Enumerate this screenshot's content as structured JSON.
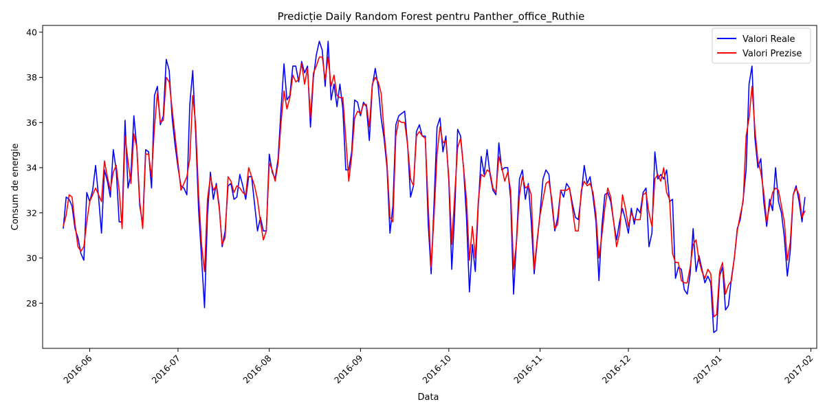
{
  "chart_data": {
    "type": "line",
    "title": "Predicție Daily Random Forest pentru Panther_office_Ruthie",
    "xlabel": "Data",
    "ylabel": "Consum de energie",
    "x_start": "2016-05-23",
    "x_step_days": 1,
    "xlim": [
      "2016-05-16",
      "2017-02-03"
    ],
    "ylim": [
      26.0,
      40.3
    ],
    "x_ticks": [
      {
        "date": "2016-06-01",
        "label": "2016-06"
      },
      {
        "date": "2016-07-01",
        "label": "2016-07"
      },
      {
        "date": "2016-08-01",
        "label": "2016-08"
      },
      {
        "date": "2016-09-01",
        "label": "2016-09"
      },
      {
        "date": "2016-10-01",
        "label": "2016-10"
      },
      {
        "date": "2016-11-01",
        "label": "2016-11"
      },
      {
        "date": "2016-12-01",
        "label": "2016-12"
      },
      {
        "date": "2017-01-01",
        "label": "2017-01"
      },
      {
        "date": "2017-02-01",
        "label": "2017-02"
      }
    ],
    "y_ticks": [
      {
        "value": 28,
        "label": "28"
      },
      {
        "value": 30,
        "label": "30"
      },
      {
        "value": 32,
        "label": "32"
      },
      {
        "value": 34,
        "label": "34"
      },
      {
        "value": 36,
        "label": "36"
      },
      {
        "value": 38,
        "label": "38"
      },
      {
        "value": 40,
        "label": "40"
      }
    ],
    "grid": false,
    "legend_position": "top-right",
    "series": [
      {
        "name": "Valori Reale",
        "color": "#0000ff",
        "values": [
          31.3,
          32.7,
          32.6,
          32.3,
          31.3,
          30.9,
          30.2,
          29.9,
          32.9,
          32.5,
          33.0,
          34.1,
          32.7,
          31.1,
          33.9,
          33.4,
          32.7,
          34.8,
          33.9,
          31.6,
          31.6,
          36.1,
          33.1,
          33.7,
          36.3,
          34.9,
          32.3,
          31.5,
          34.8,
          34.7,
          33.1,
          37.2,
          37.6,
          35.9,
          36.3,
          38.8,
          38.3,
          36.2,
          35.0,
          34.0,
          33.2,
          33.1,
          32.8,
          36.8,
          38.3,
          35.5,
          32.1,
          30.0,
          27.8,
          31.9,
          33.8,
          32.6,
          33.3,
          32.3,
          30.5,
          31.2,
          33.2,
          33.3,
          32.6,
          32.7,
          33.7,
          33.2,
          32.6,
          33.6,
          33.6,
          32.4,
          31.2,
          31.8,
          31.2,
          31.2,
          34.6,
          33.8,
          33.5,
          34.4,
          36.6,
          38.6,
          37.0,
          37.2,
          38.5,
          38.5,
          37.8,
          38.7,
          38.2,
          38.5,
          35.8,
          38.0,
          39.0,
          39.6,
          39.2,
          37.6,
          39.6,
          37.0,
          37.7,
          36.7,
          37.7,
          36.6,
          33.9,
          33.9,
          34.7,
          37.0,
          36.9,
          36.3,
          36.9,
          36.7,
          35.2,
          37.6,
          38.4,
          37.6,
          36.2,
          35.3,
          34.0,
          31.1,
          32.3,
          35.9,
          36.3,
          36.4,
          36.5,
          35.0,
          32.7,
          33.2,
          35.6,
          35.9,
          35.4,
          35.4,
          31.5,
          29.3,
          32.5,
          35.8,
          36.2,
          34.7,
          35.4,
          33.4,
          29.5,
          32.0,
          35.7,
          35.4,
          34.0,
          31.8,
          28.5,
          30.6,
          29.4,
          32.3,
          34.5,
          33.7,
          34.8,
          33.7,
          33.0,
          32.8,
          35.1,
          33.9,
          34.0,
          34.0,
          32.6,
          28.4,
          30.8,
          33.5,
          33.9,
          32.6,
          33.3,
          31.6,
          29.3,
          30.7,
          32.0,
          33.5,
          33.9,
          33.7,
          32.4,
          31.2,
          31.8,
          33.0,
          32.7,
          33.3,
          33.1,
          32.4,
          31.8,
          31.7,
          32.8,
          34.1,
          33.3,
          33.6,
          32.7,
          31.6,
          29.0,
          31.4,
          32.8,
          32.9,
          32.5,
          31.6,
          30.8,
          31.6,
          32.2,
          31.7,
          31.1,
          32.2,
          31.5,
          32.2,
          32.0,
          32.9,
          33.1,
          30.5,
          31.1,
          34.7,
          33.5,
          33.7,
          33.5,
          33.9,
          32.5,
          32.6,
          29.1,
          29.6,
          29.5,
          28.6,
          28.4,
          29.3,
          31.3,
          29.4,
          30.1,
          29.5,
          28.9,
          29.2,
          28.9,
          26.7,
          26.8,
          29.2,
          29.6,
          27.7,
          27.9,
          29.1,
          30.0,
          31.3,
          31.7,
          32.6,
          33.9,
          37.7,
          38.5,
          35.3,
          34.0,
          34.4,
          32.5,
          31.4,
          32.6,
          32.1,
          34.0,
          32.5,
          32.0,
          30.9,
          29.2,
          30.3,
          32.8,
          33.2,
          32.5,
          31.6,
          32.7
        ]
      },
      {
        "name": "Valori Prezise",
        "color": "#ff0000",
        "values": [
          31.4,
          31.9,
          32.8,
          32.7,
          31.5,
          30.5,
          30.3,
          30.5,
          31.6,
          32.5,
          32.8,
          33.1,
          32.8,
          32.5,
          34.3,
          33.6,
          33.0,
          33.8,
          34.1,
          33.0,
          31.3,
          35.4,
          34.3,
          33.3,
          35.5,
          34.9,
          32.5,
          31.3,
          34.6,
          34.6,
          33.6,
          35.8,
          37.3,
          36.0,
          36.1,
          38.0,
          37.8,
          36.6,
          35.4,
          34.2,
          33.0,
          33.3,
          33.6,
          34.4,
          37.2,
          35.9,
          32.8,
          30.6,
          29.4,
          32.6,
          33.6,
          33.0,
          33.2,
          32.2,
          30.6,
          30.9,
          33.6,
          33.4,
          32.9,
          33.2,
          33.1,
          32.9,
          32.8,
          34.0,
          33.6,
          33.2,
          32.6,
          31.6,
          30.8,
          31.2,
          34.2,
          33.9,
          33.4,
          34.2,
          36.0,
          37.4,
          36.6,
          37.1,
          38.1,
          37.8,
          37.9,
          38.6,
          37.7,
          38.4,
          36.2,
          38.2,
          38.5,
          38.9,
          38.9,
          37.9,
          38.9,
          37.6,
          38.1,
          37.2,
          37.1,
          37.1,
          35.3,
          33.4,
          34.5,
          36.2,
          36.5,
          36.4,
          36.8,
          36.8,
          35.8,
          37.7,
          38.0,
          37.8,
          37.3,
          35.6,
          34.2,
          31.8,
          31.6,
          35.4,
          36.1,
          36.0,
          36.0,
          35.0,
          33.5,
          33.2,
          35.4,
          35.6,
          35.4,
          35.3,
          32.3,
          29.6,
          31.9,
          34.6,
          35.8,
          35.1,
          35.2,
          33.6,
          30.6,
          32.8,
          34.9,
          35.3,
          34.0,
          32.6,
          29.9,
          31.4,
          30.0,
          32.5,
          33.7,
          33.6,
          33.9,
          33.8,
          33.1,
          32.9,
          34.5,
          34.0,
          33.4,
          33.8,
          33.0,
          29.5,
          30.7,
          32.8,
          33.6,
          33.1,
          33.2,
          32.8,
          29.5,
          30.8,
          31.9,
          32.6,
          33.3,
          33.4,
          32.6,
          31.3,
          31.5,
          33.0,
          33.0,
          33.0,
          33.1,
          32.2,
          31.2,
          31.2,
          33.0,
          33.4,
          33.2,
          33.3,
          32.9,
          31.9,
          30.0,
          31.0,
          32.2,
          33.1,
          32.7,
          31.6,
          30.5,
          31.1,
          32.8,
          32.2,
          31.4,
          32.0,
          31.7,
          31.7,
          31.7,
          32.8,
          32.9,
          32.0,
          31.4,
          33.5,
          33.7,
          33.4,
          34.0,
          32.9,
          32.6,
          30.2,
          29.8,
          29.8,
          29.0,
          28.9,
          28.9,
          29.6,
          30.6,
          30.8,
          29.9,
          29.4,
          29.1,
          29.5,
          29.3,
          27.4,
          27.5,
          29.4,
          29.8,
          28.4,
          28.8,
          29.0,
          30.0,
          31.2,
          31.9,
          32.5,
          35.4,
          36.2,
          37.6,
          35.7,
          34.3,
          33.8,
          32.9,
          31.6,
          32.3,
          32.9,
          33.1,
          33.0,
          32.3,
          31.6,
          29.9,
          30.7,
          32.8,
          33.1,
          32.8,
          31.8,
          32.1
        ]
      }
    ]
  }
}
